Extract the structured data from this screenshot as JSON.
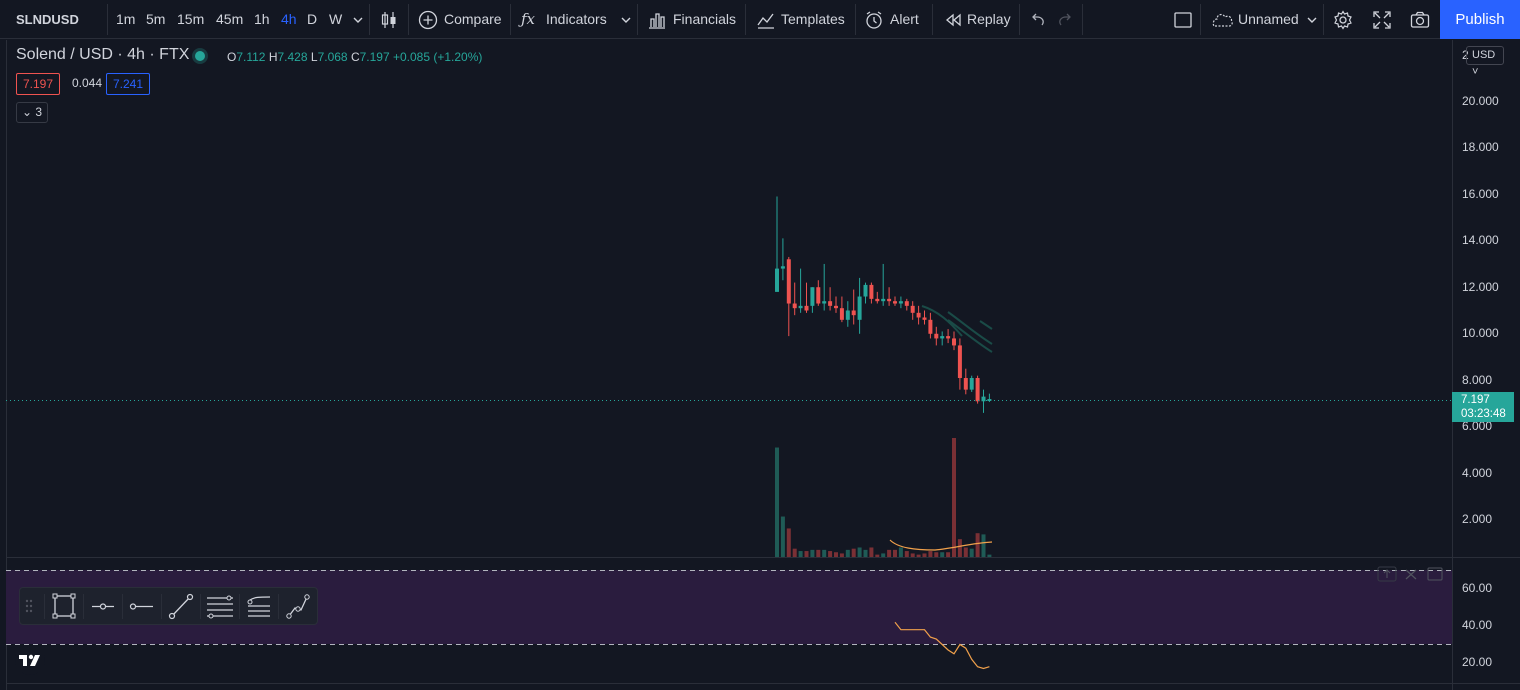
{
  "toolbar": {
    "symbol": "SLNDUSD",
    "intervals": [
      "1m",
      "5m",
      "15m",
      "45m",
      "1h",
      "4h",
      "D",
      "W"
    ],
    "active_interval": "4h",
    "compare": "Compare",
    "indicators": "Indicators",
    "financials": "Financials",
    "templates": "Templates",
    "alert": "Alert",
    "replay": "Replay",
    "layout_name": "Unnamed",
    "publish": "Publish"
  },
  "legend": {
    "title": "Solend / USD · 4h · FTX",
    "open_label": "O",
    "open": "7.112",
    "high_label": "H",
    "high": "7.428",
    "low_label": "L",
    "low": "7.068",
    "close_label": "C",
    "close": "7.197",
    "change": "+0.085 (+1.20%)",
    "bid": "7.197",
    "spread": "0.044",
    "ask": "7.241",
    "collapsed_count": "3"
  },
  "price_axis": {
    "currency": "USD",
    "top_partial": "2",
    "labels": [
      "20.000",
      "18.000",
      "16.000",
      "14.000",
      "12.000",
      "10.000",
      "8.000",
      "6.000",
      "4.000",
      "2.000"
    ],
    "last_price": "7.197",
    "countdown": "03:23:48"
  },
  "rsi_axis": {
    "labels": [
      "60.00",
      "40.00",
      "20.00"
    ]
  },
  "drawing_toolbar": {
    "tools": [
      "rectangle-tool",
      "horizontal-ray-tool",
      "horizontal-line-tool",
      "trend-line-tool",
      "parallel-channel-tool",
      "fib-retracement-tool",
      "path-tool"
    ]
  },
  "colors": {
    "background": "#131722",
    "up": "#26a69a",
    "down": "#ef5350",
    "accent": "#2962ff",
    "rsi_band": "#2a1c3e",
    "ma_line": "#f0a04b"
  },
  "chart_data": {
    "type": "candlestick",
    "symbol": "Solend / USD",
    "interval": "4h",
    "price_range": [
      0,
      21
    ],
    "candles": [
      {
        "o": 11.8,
        "h": 15.9,
        "l": 11.8,
        "c": 12.8
      },
      {
        "o": 12.8,
        "h": 14.1,
        "l": 12.3,
        "c": 12.9
      },
      {
        "o": 13.2,
        "h": 13.3,
        "l": 9.9,
        "c": 11.3
      },
      {
        "o": 11.3,
        "h": 12.2,
        "l": 10.8,
        "c": 11.1
      },
      {
        "o": 11.1,
        "h": 12.8,
        "l": 10.9,
        "c": 11.2
      },
      {
        "o": 11.2,
        "h": 12.2,
        "l": 10.9,
        "c": 11.0
      },
      {
        "o": 11.2,
        "h": 12.0,
        "l": 10.9,
        "c": 12.0
      },
      {
        "o": 12.0,
        "h": 12.3,
        "l": 11.2,
        "c": 11.3
      },
      {
        "o": 11.3,
        "h": 13.0,
        "l": 11.0,
        "c": 11.4
      },
      {
        "o": 11.4,
        "h": 12.0,
        "l": 11.0,
        "c": 11.2
      },
      {
        "o": 11.2,
        "h": 11.6,
        "l": 10.9,
        "c": 11.1
      },
      {
        "o": 11.1,
        "h": 11.6,
        "l": 10.5,
        "c": 10.6
      },
      {
        "o": 10.6,
        "h": 11.4,
        "l": 10.3,
        "c": 11.0
      },
      {
        "o": 11.0,
        "h": 11.9,
        "l": 10.4,
        "c": 10.8
      },
      {
        "o": 10.6,
        "h": 12.4,
        "l": 10.0,
        "c": 11.6
      },
      {
        "o": 11.6,
        "h": 12.2,
        "l": 11.3,
        "c": 12.1
      },
      {
        "o": 12.1,
        "h": 12.2,
        "l": 11.3,
        "c": 11.5
      },
      {
        "o": 11.5,
        "h": 11.8,
        "l": 11.3,
        "c": 11.4
      },
      {
        "o": 11.4,
        "h": 13.0,
        "l": 11.2,
        "c": 11.5
      },
      {
        "o": 11.5,
        "h": 12.0,
        "l": 11.2,
        "c": 11.4
      },
      {
        "o": 11.4,
        "h": 11.6,
        "l": 11.2,
        "c": 11.3
      },
      {
        "o": 11.3,
        "h": 11.6,
        "l": 11.1,
        "c": 11.4
      },
      {
        "o": 11.4,
        "h": 11.5,
        "l": 11.0,
        "c": 11.2
      },
      {
        "o": 11.2,
        "h": 11.4,
        "l": 10.6,
        "c": 10.9
      },
      {
        "o": 10.9,
        "h": 11.2,
        "l": 10.4,
        "c": 10.7
      },
      {
        "o": 10.7,
        "h": 11.0,
        "l": 10.4,
        "c": 10.6
      },
      {
        "o": 10.6,
        "h": 10.9,
        "l": 9.8,
        "c": 10.0
      },
      {
        "o": 10.0,
        "h": 10.3,
        "l": 9.5,
        "c": 9.8
      },
      {
        "o": 9.8,
        "h": 10.1,
        "l": 9.5,
        "c": 9.9
      },
      {
        "o": 9.9,
        "h": 10.2,
        "l": 9.6,
        "c": 9.8
      },
      {
        "o": 9.8,
        "h": 10.1,
        "l": 9.3,
        "c": 9.5
      },
      {
        "o": 9.5,
        "h": 9.8,
        "l": 7.6,
        "c": 8.1
      },
      {
        "o": 8.1,
        "h": 8.5,
        "l": 7.4,
        "c": 7.6
      },
      {
        "o": 7.6,
        "h": 8.2,
        "l": 7.5,
        "c": 8.1
      },
      {
        "o": 8.1,
        "h": 8.2,
        "l": 7.0,
        "c": 7.1
      },
      {
        "o": 7.1,
        "h": 7.6,
        "l": 6.6,
        "c": 7.3
      },
      {
        "o": 7.112,
        "h": 7.428,
        "l": 7.068,
        "c": 7.197
      }
    ],
    "volume": [
      0.92,
      0.34,
      0.24,
      0.07,
      0.05,
      0.05,
      0.06,
      0.06,
      0.06,
      0.05,
      0.04,
      0.03,
      0.06,
      0.07,
      0.08,
      0.06,
      0.08,
      0.02,
      0.03,
      0.06,
      0.06,
      0.08,
      0.05,
      0.03,
      0.02,
      0.03,
      0.05,
      0.04,
      0.04,
      0.04,
      1.0,
      0.15,
      0.08,
      0.07,
      0.2,
      0.19,
      0.02
    ],
    "rsi_range": [
      10,
      72
    ],
    "rsi": [
      null,
      null,
      null,
      null,
      null,
      null,
      null,
      null,
      null,
      null,
      null,
      null,
      null,
      null,
      null,
      null,
      null,
      null,
      null,
      null,
      42,
      38,
      38,
      38,
      38,
      38,
      34,
      33,
      30,
      27,
      25,
      30,
      28,
      22,
      18,
      17,
      18
    ],
    "rsi_bands": [
      70,
      30
    ]
  }
}
